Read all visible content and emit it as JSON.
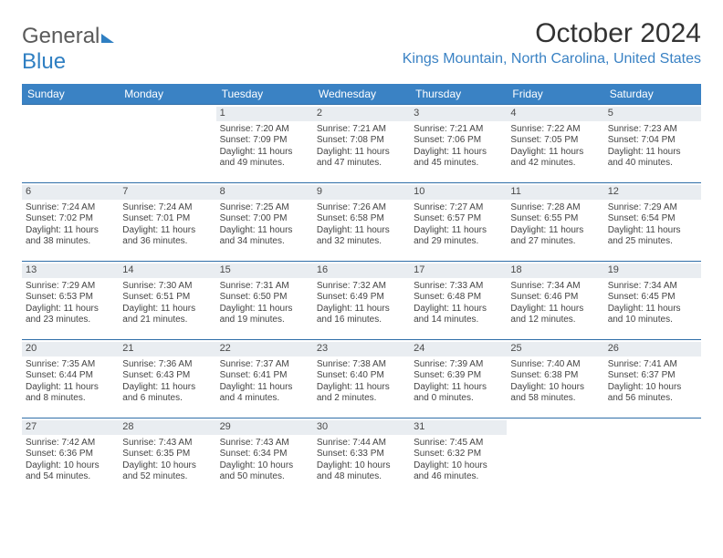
{
  "brand": {
    "part1": "General",
    "part2": "Blue"
  },
  "title": "October 2024",
  "location": "Kings Mountain, North Carolina, United States",
  "colors": {
    "header_bg": "#3a82c4",
    "header_text": "#ffffff",
    "daynum_bg": "#e9edf1",
    "cell_border": "#2f6ea8",
    "location_color": "#3a82c4"
  },
  "weekdays": [
    "Sunday",
    "Monday",
    "Tuesday",
    "Wednesday",
    "Thursday",
    "Friday",
    "Saturday"
  ],
  "first_weekday_index": 2,
  "days": [
    {
      "n": 1,
      "sunrise": "7:20 AM",
      "sunset": "7:09 PM",
      "daylight": "11 hours and 49 minutes."
    },
    {
      "n": 2,
      "sunrise": "7:21 AM",
      "sunset": "7:08 PM",
      "daylight": "11 hours and 47 minutes."
    },
    {
      "n": 3,
      "sunrise": "7:21 AM",
      "sunset": "7:06 PM",
      "daylight": "11 hours and 45 minutes."
    },
    {
      "n": 4,
      "sunrise": "7:22 AM",
      "sunset": "7:05 PM",
      "daylight": "11 hours and 42 minutes."
    },
    {
      "n": 5,
      "sunrise": "7:23 AM",
      "sunset": "7:04 PM",
      "daylight": "11 hours and 40 minutes."
    },
    {
      "n": 6,
      "sunrise": "7:24 AM",
      "sunset": "7:02 PM",
      "daylight": "11 hours and 38 minutes."
    },
    {
      "n": 7,
      "sunrise": "7:24 AM",
      "sunset": "7:01 PM",
      "daylight": "11 hours and 36 minutes."
    },
    {
      "n": 8,
      "sunrise": "7:25 AM",
      "sunset": "7:00 PM",
      "daylight": "11 hours and 34 minutes."
    },
    {
      "n": 9,
      "sunrise": "7:26 AM",
      "sunset": "6:58 PM",
      "daylight": "11 hours and 32 minutes."
    },
    {
      "n": 10,
      "sunrise": "7:27 AM",
      "sunset": "6:57 PM",
      "daylight": "11 hours and 29 minutes."
    },
    {
      "n": 11,
      "sunrise": "7:28 AM",
      "sunset": "6:55 PM",
      "daylight": "11 hours and 27 minutes."
    },
    {
      "n": 12,
      "sunrise": "7:29 AM",
      "sunset": "6:54 PM",
      "daylight": "11 hours and 25 minutes."
    },
    {
      "n": 13,
      "sunrise": "7:29 AM",
      "sunset": "6:53 PM",
      "daylight": "11 hours and 23 minutes."
    },
    {
      "n": 14,
      "sunrise": "7:30 AM",
      "sunset": "6:51 PM",
      "daylight": "11 hours and 21 minutes."
    },
    {
      "n": 15,
      "sunrise": "7:31 AM",
      "sunset": "6:50 PM",
      "daylight": "11 hours and 19 minutes."
    },
    {
      "n": 16,
      "sunrise": "7:32 AM",
      "sunset": "6:49 PM",
      "daylight": "11 hours and 16 minutes."
    },
    {
      "n": 17,
      "sunrise": "7:33 AM",
      "sunset": "6:48 PM",
      "daylight": "11 hours and 14 minutes."
    },
    {
      "n": 18,
      "sunrise": "7:34 AM",
      "sunset": "6:46 PM",
      "daylight": "11 hours and 12 minutes."
    },
    {
      "n": 19,
      "sunrise": "7:34 AM",
      "sunset": "6:45 PM",
      "daylight": "11 hours and 10 minutes."
    },
    {
      "n": 20,
      "sunrise": "7:35 AM",
      "sunset": "6:44 PM",
      "daylight": "11 hours and 8 minutes."
    },
    {
      "n": 21,
      "sunrise": "7:36 AM",
      "sunset": "6:43 PM",
      "daylight": "11 hours and 6 minutes."
    },
    {
      "n": 22,
      "sunrise": "7:37 AM",
      "sunset": "6:41 PM",
      "daylight": "11 hours and 4 minutes."
    },
    {
      "n": 23,
      "sunrise": "7:38 AM",
      "sunset": "6:40 PM",
      "daylight": "11 hours and 2 minutes."
    },
    {
      "n": 24,
      "sunrise": "7:39 AM",
      "sunset": "6:39 PM",
      "daylight": "11 hours and 0 minutes."
    },
    {
      "n": 25,
      "sunrise": "7:40 AM",
      "sunset": "6:38 PM",
      "daylight": "10 hours and 58 minutes."
    },
    {
      "n": 26,
      "sunrise": "7:41 AM",
      "sunset": "6:37 PM",
      "daylight": "10 hours and 56 minutes."
    },
    {
      "n": 27,
      "sunrise": "7:42 AM",
      "sunset": "6:36 PM",
      "daylight": "10 hours and 54 minutes."
    },
    {
      "n": 28,
      "sunrise": "7:43 AM",
      "sunset": "6:35 PM",
      "daylight": "10 hours and 52 minutes."
    },
    {
      "n": 29,
      "sunrise": "7:43 AM",
      "sunset": "6:34 PM",
      "daylight": "10 hours and 50 minutes."
    },
    {
      "n": 30,
      "sunrise": "7:44 AM",
      "sunset": "6:33 PM",
      "daylight": "10 hours and 48 minutes."
    },
    {
      "n": 31,
      "sunrise": "7:45 AM",
      "sunset": "6:32 PM",
      "daylight": "10 hours and 46 minutes."
    }
  ],
  "labels": {
    "sunrise": "Sunrise:",
    "sunset": "Sunset:",
    "daylight": "Daylight:"
  }
}
